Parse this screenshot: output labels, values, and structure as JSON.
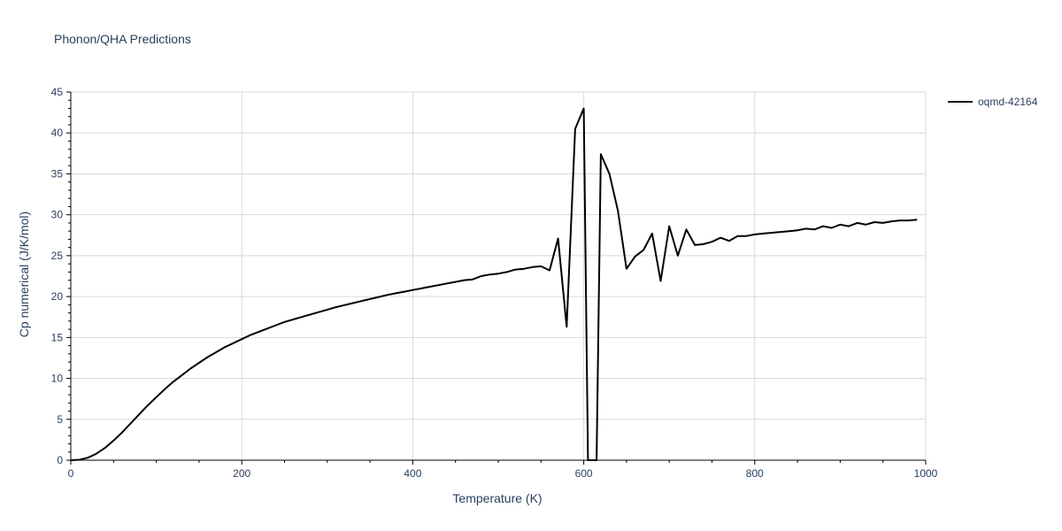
{
  "chart_data": {
    "type": "line",
    "title": "Phonon/QHA Predictions",
    "xlabel": "Temperature (K)",
    "ylabel": "Cp numerical (J/K/mol)",
    "xlim": [
      0,
      1000
    ],
    "ylim": [
      0,
      45
    ],
    "x_ticks": [
      0,
      200,
      400,
      600,
      800,
      1000
    ],
    "y_ticks": [
      0,
      5,
      10,
      15,
      20,
      25,
      30,
      35,
      40,
      45
    ],
    "grid": true,
    "legend_position": "top-right",
    "series": [
      {
        "name": "oqmd-42164",
        "color": "#000000",
        "points": [
          [
            0,
            0
          ],
          [
            10,
            0.05
          ],
          [
            20,
            0.3
          ],
          [
            30,
            0.8
          ],
          [
            40,
            1.5
          ],
          [
            50,
            2.4
          ],
          [
            60,
            3.4
          ],
          [
            70,
            4.5
          ],
          [
            80,
            5.6
          ],
          [
            90,
            6.7
          ],
          [
            100,
            7.7
          ],
          [
            110,
            8.7
          ],
          [
            120,
            9.6
          ],
          [
            130,
            10.4
          ],
          [
            140,
            11.2
          ],
          [
            150,
            11.9
          ],
          [
            160,
            12.6
          ],
          [
            170,
            13.2
          ],
          [
            180,
            13.8
          ],
          [
            190,
            14.3
          ],
          [
            200,
            14.8
          ],
          [
            210,
            15.3
          ],
          [
            220,
            15.7
          ],
          [
            230,
            16.1
          ],
          [
            240,
            16.5
          ],
          [
            250,
            16.9
          ],
          [
            260,
            17.2
          ],
          [
            270,
            17.5
          ],
          [
            280,
            17.8
          ],
          [
            290,
            18.1
          ],
          [
            300,
            18.4
          ],
          [
            310,
            18.7
          ],
          [
            320,
            18.95
          ],
          [
            330,
            19.2
          ],
          [
            340,
            19.45
          ],
          [
            350,
            19.7
          ],
          [
            360,
            19.95
          ],
          [
            370,
            20.2
          ],
          [
            380,
            20.4
          ],
          [
            390,
            20.6
          ],
          [
            400,
            20.8
          ],
          [
            410,
            21.0
          ],
          [
            420,
            21.2
          ],
          [
            430,
            21.4
          ],
          [
            440,
            21.6
          ],
          [
            450,
            21.8
          ],
          [
            460,
            22.0
          ],
          [
            470,
            22.1
          ],
          [
            480,
            22.5
          ],
          [
            490,
            22.7
          ],
          [
            500,
            22.8
          ],
          [
            510,
            23.0
          ],
          [
            520,
            23.3
          ],
          [
            530,
            23.4
          ],
          [
            540,
            23.6
          ],
          [
            550,
            23.7
          ],
          [
            560,
            23.2
          ],
          [
            570,
            27.1
          ],
          [
            580,
            16.3
          ],
          [
            590,
            40.5
          ],
          [
            600,
            43.0
          ],
          [
            605,
            0
          ],
          [
            615,
            0
          ],
          [
            620,
            37.4
          ],
          [
            630,
            35.0
          ],
          [
            640,
            30.5
          ],
          [
            650,
            23.4
          ],
          [
            660,
            24.9
          ],
          [
            670,
            25.7
          ],
          [
            680,
            27.7
          ],
          [
            690,
            21.9
          ],
          [
            700,
            28.6
          ],
          [
            710,
            25.0
          ],
          [
            720,
            28.2
          ],
          [
            730,
            26.3
          ],
          [
            740,
            26.4
          ],
          [
            750,
            26.7
          ],
          [
            760,
            27.2
          ],
          [
            770,
            26.8
          ],
          [
            780,
            27.4
          ],
          [
            790,
            27.4
          ],
          [
            800,
            27.6
          ],
          [
            810,
            27.7
          ],
          [
            820,
            27.8
          ],
          [
            830,
            27.9
          ],
          [
            840,
            28.0
          ],
          [
            850,
            28.1
          ],
          [
            860,
            28.3
          ],
          [
            870,
            28.2
          ],
          [
            880,
            28.6
          ],
          [
            890,
            28.4
          ],
          [
            900,
            28.8
          ],
          [
            910,
            28.6
          ],
          [
            920,
            29.0
          ],
          [
            930,
            28.8
          ],
          [
            940,
            29.1
          ],
          [
            950,
            29.0
          ],
          [
            960,
            29.2
          ],
          [
            970,
            29.3
          ],
          [
            980,
            29.3
          ],
          [
            990,
            29.4
          ]
        ]
      }
    ]
  }
}
